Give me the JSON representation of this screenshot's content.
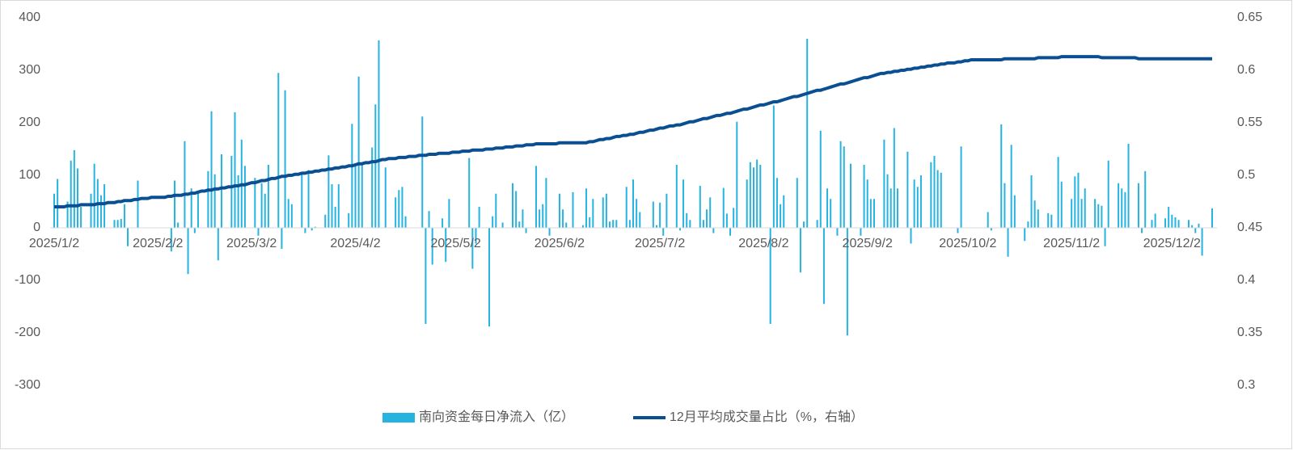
{
  "chart_data": {
    "type": "bar-line",
    "categories": [
      "2025/1/2",
      null,
      null,
      null,
      null,
      null,
      null,
      null,
      null,
      null,
      null,
      null,
      null,
      null,
      null,
      null,
      null,
      null,
      null,
      null,
      null,
      null,
      null,
      null,
      null,
      null,
      null,
      null,
      null,
      null,
      null,
      "2025/2/2",
      null,
      null,
      null,
      null,
      null,
      null,
      null,
      null,
      null,
      null,
      null,
      null,
      null,
      null,
      null,
      null,
      null,
      null,
      null,
      null,
      null,
      null,
      null,
      null,
      null,
      null,
      null,
      "2025/3/2",
      null,
      null,
      null,
      null,
      null,
      null,
      null,
      null,
      null,
      null,
      null,
      null,
      null,
      null,
      null,
      null,
      null,
      null,
      null,
      null,
      null,
      null,
      null,
      null,
      null,
      null,
      null,
      null,
      null,
      null,
      "2025/4/2",
      null,
      null,
      null,
      null,
      null,
      null,
      null,
      null,
      null,
      null,
      null,
      null,
      null,
      null,
      null,
      null,
      null,
      null,
      null,
      null,
      null,
      null,
      null,
      null,
      null,
      null,
      null,
      null,
      null,
      "2025/5/2",
      null,
      null,
      null,
      null,
      null,
      null,
      null,
      null,
      null,
      null,
      null,
      null,
      null,
      null,
      null,
      null,
      null,
      null,
      null,
      null,
      null,
      null,
      null,
      null,
      null,
      null,
      null,
      null,
      null,
      null,
      "2025/6/2",
      null,
      null,
      null,
      null,
      null,
      null,
      null,
      null,
      null,
      null,
      null,
      null,
      null,
      null,
      null,
      null,
      null,
      null,
      null,
      null,
      null,
      null,
      null,
      null,
      null,
      null,
      null,
      null,
      null,
      "2025/7/2",
      null,
      null,
      null,
      null,
      null,
      null,
      null,
      null,
      null,
      null,
      null,
      null,
      null,
      null,
      null,
      null,
      null,
      null,
      null,
      null,
      null,
      null,
      null,
      null,
      null,
      null,
      null,
      null,
      null,
      null,
      "2025/8/2",
      null,
      null,
      null,
      null,
      null,
      null,
      null,
      null,
      null,
      null,
      null,
      null,
      null,
      null,
      null,
      null,
      null,
      null,
      null,
      null,
      null,
      null,
      null,
      null,
      null,
      null,
      null,
      null,
      null,
      null,
      "2025/9/2",
      null,
      null,
      null,
      null,
      null,
      null,
      null,
      null,
      null,
      null,
      null,
      null,
      null,
      null,
      null,
      null,
      null,
      null,
      null,
      null,
      null,
      null,
      null,
      null,
      null,
      null,
      null,
      null,
      null,
      "2025/10/2",
      null,
      null,
      null,
      null,
      null,
      null,
      null,
      null,
      null,
      null,
      null,
      null,
      null,
      null,
      null,
      null,
      null,
      null,
      null,
      null,
      null,
      null,
      null,
      null,
      null,
      null,
      null,
      null,
      null,
      null,
      "2025/11/2",
      null,
      null,
      null,
      null,
      null,
      null,
      null,
      null,
      null,
      null,
      null,
      null,
      null,
      null,
      null,
      null,
      null,
      null,
      null,
      null,
      null,
      null,
      null,
      null,
      null,
      null,
      null,
      null,
      null,
      "2025/12/2",
      null,
      null,
      null,
      null,
      null,
      null,
      null,
      null,
      null,
      null,
      null,
      null
    ],
    "series": [
      {
        "name": "南向资金每日净流入（亿）",
        "kind": "bar",
        "color": "#27b3df",
        "values": [
          65,
          93,
          null,
          null,
          50,
          128,
          148,
          113,
          40,
          null,
          null,
          65,
          122,
          93,
          62,
          83,
          null,
          null,
          15,
          15,
          17,
          45,
          -35,
          null,
          null,
          90,
          null,
          null,
          null,
          null,
          null,
          null,
          null,
          null,
          null,
          -45,
          90,
          10,
          null,
          165,
          -88,
          75,
          -10,
          70,
          null,
          null,
          108,
          222,
          102,
          -62,
          140,
          null,
          null,
          137,
          220,
          100,
          168,
          118,
          null,
          null,
          95,
          -15,
          85,
          65,
          120,
          null,
          null,
          295,
          -40,
          262,
          55,
          45,
          null,
          null,
          105,
          -10,
          110,
          -5,
          2,
          null,
          null,
          25,
          138,
          83,
          40,
          83,
          null,
          null,
          28,
          198,
          120,
          288,
          120,
          null,
          null,
          153,
          235,
          357,
          null,
          115,
          null,
          null,
          58,
          72,
          78,
          22,
          null,
          null,
          null,
          null,
          212,
          -183,
          32,
          -70,
          null,
          null,
          18,
          -65,
          55,
          null,
          null,
          null,
          null,
          null,
          133,
          -78,
          -30,
          40,
          null,
          null,
          -188,
          22,
          65,
          null,
          10,
          null,
          null,
          85,
          70,
          12,
          35,
          -10,
          null,
          null,
          118,
          35,
          45,
          95,
          -15,
          null,
          null,
          65,
          35,
          10,
          null,
          68,
          null,
          null,
          5,
          75,
          20,
          55,
          null,
          null,
          58,
          65,
          12,
          15,
          15,
          null,
          null,
          78,
          15,
          92,
          55,
          30,
          null,
          null,
          null,
          50,
          5,
          48,
          -15,
          65,
          null,
          null,
          120,
          -5,
          92,
          28,
          15,
          null,
          null,
          80,
          15,
          35,
          58,
          -10,
          null,
          null,
          76,
          27,
          -15,
          38,
          202,
          null,
          null,
          92,
          125,
          115,
          130,
          120,
          null,
          null,
          -183,
          233,
          95,
          45,
          62,
          null,
          null,
          null,
          95,
          -85,
          12,
          360,
          null,
          null,
          15,
          185,
          -145,
          75,
          55,
          null,
          -15,
          165,
          155,
          -205,
          122,
          null,
          null,
          -15,
          120,
          92,
          55,
          55,
          null,
          null,
          168,
          102,
          75,
          190,
          75,
          null,
          null,
          145,
          -30,
          92,
          78,
          100,
          null,
          null,
          125,
          137,
          110,
          105,
          null,
          null,
          null,
          null,
          -10,
          155,
          null,
          null,
          null,
          null,
          null,
          null,
          null,
          30,
          -5,
          null,
          null,
          197,
          85,
          -55,
          158,
          62,
          null,
          null,
          -25,
          12,
          100,
          52,
          35,
          null,
          null,
          28,
          25,
          null,
          135,
          88,
          null,
          null,
          55,
          98,
          105,
          55,
          75,
          null,
          null,
          55,
          45,
          42,
          -35,
          128,
          null,
          null,
          85,
          75,
          68,
          160,
          null,
          null,
          85,
          -10,
          108,
          null,
          15,
          27,
          null,
          null,
          18,
          40,
          25,
          20,
          15,
          null,
          null,
          15,
          5,
          -10,
          8,
          -53,
          null,
          null,
          37
        ]
      },
      {
        "name": "12月平均成交量占比（%，右轴）",
        "kind": "line",
        "axis": "y2",
        "color": "#0b4f93",
        "values": [
          0.47,
          0.47,
          0.47,
          0.47,
          0.471,
          0.471,
          0.471,
          0.471,
          0.472,
          0.472,
          0.472,
          0.472,
          0.472,
          0.473,
          0.473,
          0.473,
          0.474,
          0.474,
          0.474,
          0.475,
          0.475,
          0.476,
          0.476,
          0.476,
          0.477,
          0.477,
          0.478,
          0.478,
          0.478,
          0.479,
          0.479,
          0.479,
          0.479,
          0.479,
          0.48,
          0.48,
          0.481,
          0.481,
          0.481,
          0.482,
          0.482,
          0.483,
          0.483,
          0.484,
          0.485,
          0.485,
          0.486,
          0.486,
          0.487,
          0.487,
          0.488,
          0.488,
          0.489,
          0.489,
          0.49,
          0.49,
          0.491,
          0.491,
          0.492,
          0.493,
          0.493,
          0.494,
          0.495,
          0.495,
          0.496,
          0.497,
          0.497,
          0.498,
          0.499,
          0.499,
          0.5,
          0.5,
          0.501,
          0.501,
          0.502,
          0.502,
          0.503,
          0.503,
          0.504,
          0.504,
          0.505,
          0.505,
          0.506,
          0.506,
          0.507,
          0.507,
          0.508,
          0.508,
          0.509,
          0.509,
          0.51,
          0.511,
          0.511,
          0.512,
          0.512,
          0.513,
          0.513,
          0.514,
          0.515,
          0.515,
          0.516,
          0.516,
          0.516,
          0.517,
          0.517,
          0.517,
          0.518,
          0.518,
          0.518,
          0.519,
          0.519,
          0.519,
          0.52,
          0.52,
          0.52,
          0.521,
          0.521,
          0.521,
          0.521,
          0.522,
          0.522,
          0.522,
          0.523,
          0.523,
          0.523,
          0.524,
          0.524,
          0.524,
          0.524,
          0.525,
          0.525,
          0.525,
          0.526,
          0.526,
          0.526,
          0.527,
          0.527,
          0.527,
          0.528,
          0.528,
          0.528,
          0.529,
          0.529,
          0.529,
          0.53,
          0.53,
          0.53,
          0.53,
          0.53,
          0.53,
          0.53,
          0.531,
          0.531,
          0.531,
          0.531,
          0.531,
          0.531,
          0.531,
          0.531,
          0.531,
          0.532,
          0.532,
          0.533,
          0.534,
          0.534,
          0.535,
          0.535,
          0.536,
          0.537,
          0.537,
          0.538,
          0.538,
          0.539,
          0.539,
          0.54,
          0.541,
          0.541,
          0.542,
          0.543,
          0.543,
          0.544,
          0.545,
          0.545,
          0.546,
          0.547,
          0.547,
          0.548,
          0.548,
          0.549,
          0.55,
          0.551,
          0.551,
          0.552,
          0.553,
          0.554,
          0.554,
          0.555,
          0.556,
          0.557,
          0.557,
          0.558,
          0.559,
          0.559,
          0.56,
          0.561,
          0.562,
          0.563,
          0.563,
          0.564,
          0.565,
          0.566,
          0.567,
          0.567,
          0.568,
          0.569,
          0.57,
          0.57,
          0.571,
          0.572,
          0.573,
          0.574,
          0.575,
          0.575,
          0.576,
          0.577,
          0.578,
          0.579,
          0.58,
          0.581,
          0.581,
          0.582,
          0.583,
          0.584,
          0.585,
          0.586,
          0.587,
          0.587,
          0.588,
          0.589,
          0.59,
          0.591,
          0.592,
          0.593,
          0.593,
          0.594,
          0.595,
          0.596,
          0.597,
          0.597,
          0.598,
          0.598,
          0.599,
          0.599,
          0.6,
          0.6,
          0.601,
          0.601,
          0.602,
          0.602,
          0.603,
          0.603,
          0.604,
          0.604,
          0.605,
          0.605,
          0.606,
          0.606,
          0.607,
          0.607,
          0.607,
          0.608,
          0.608,
          0.609,
          0.609,
          0.61,
          0.61,
          0.61,
          0.61,
          0.61,
          0.61,
          0.61,
          0.61,
          0.61,
          0.61,
          0.611,
          0.611,
          0.611,
          0.611,
          0.611,
          0.611,
          0.611,
          0.611,
          0.611,
          0.611,
          0.612,
          0.612,
          0.612,
          0.612,
          0.612,
          0.612,
          0.612,
          0.613,
          0.613,
          0.613,
          0.613,
          0.613,
          0.613,
          0.613,
          0.613,
          0.613,
          0.613,
          0.613,
          0.613,
          0.612,
          0.612,
          0.612,
          0.612,
          0.612,
          0.612,
          0.612,
          0.612,
          0.612,
          0.612,
          0.612,
          0.611,
          0.611,
          0.611,
          0.611,
          0.611,
          0.611,
          0.611,
          0.611,
          0.611,
          0.611,
          0.611,
          0.611,
          0.611,
          0.611,
          0.611,
          0.611,
          0.611,
          0.611,
          0.611,
          0.611,
          0.611,
          0.611,
          0.611
        ]
      }
    ],
    "ylim": [
      -300,
      400
    ],
    "yticks": [
      -300,
      -200,
      -100,
      0,
      100,
      200,
      300,
      400
    ],
    "y2lim": [
      0.3,
      0.65
    ],
    "y2ticks": [
      0.3,
      0.35,
      0.4,
      0.45,
      0.5,
      0.55,
      0.6,
      0.65
    ],
    "legend": "bottom"
  }
}
